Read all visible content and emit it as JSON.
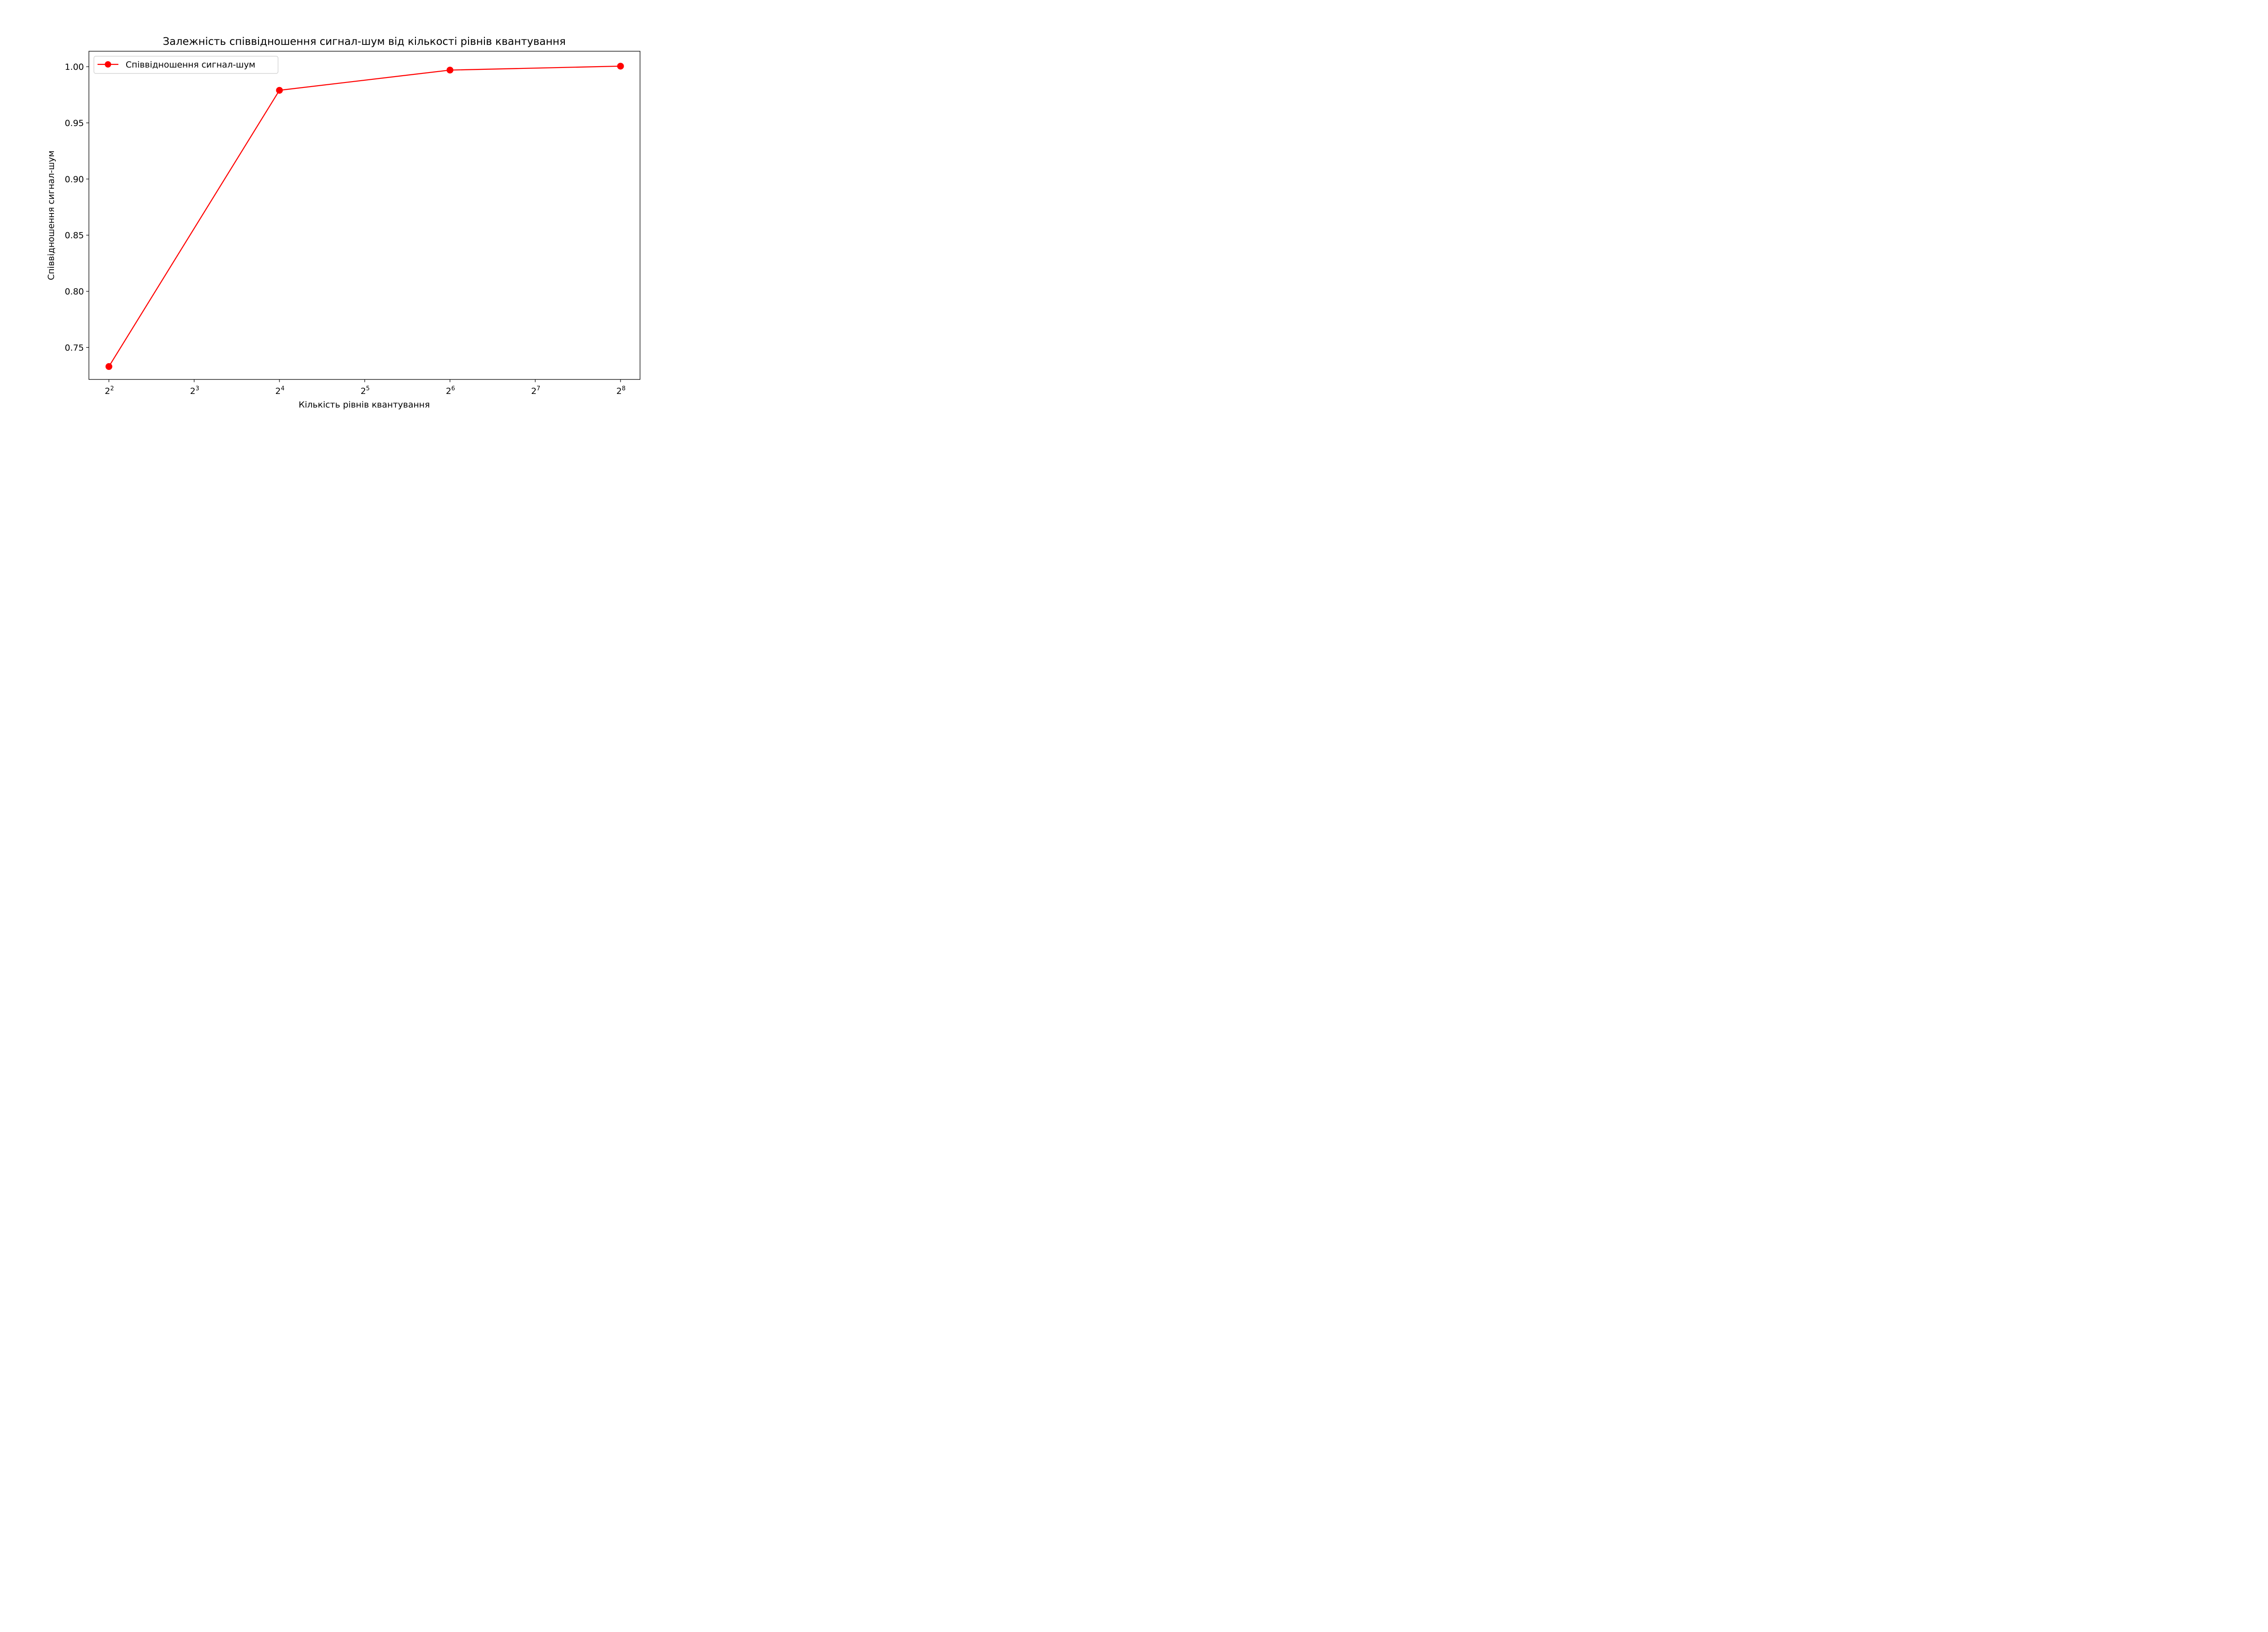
{
  "chart_data": {
    "type": "line",
    "title": "Залежність співвідношення сигнал-шум від кількості рівнів квантування",
    "xlabel": "Кількість рівнів квантування",
    "ylabel": "Співвідношення сигнал-шум",
    "x_scale": "log2",
    "x_ticks": [
      {
        "base": "2",
        "exp": "2"
      },
      {
        "base": "2",
        "exp": "3"
      },
      {
        "base": "2",
        "exp": "4"
      },
      {
        "base": "2",
        "exp": "5"
      },
      {
        "base": "2",
        "exp": "6"
      },
      {
        "base": "2",
        "exp": "7"
      },
      {
        "base": "2",
        "exp": "8"
      }
    ],
    "y_ticks": [
      "0.75",
      "0.80",
      "0.85",
      "0.90",
      "0.95",
      "1.00"
    ],
    "xlim": [
      3.4,
      300
    ],
    "ylim": [
      0.7215,
      1.0138
    ],
    "legend_position": "top-left",
    "grid": false,
    "series": [
      {
        "name": "Співвідношення сигнал-шум",
        "color": "#ff0000",
        "marker": "circle",
        "x": [
          4,
          16,
          64,
          256
        ],
        "y": [
          0.733,
          0.979,
          0.997,
          1.0005
        ]
      }
    ]
  }
}
